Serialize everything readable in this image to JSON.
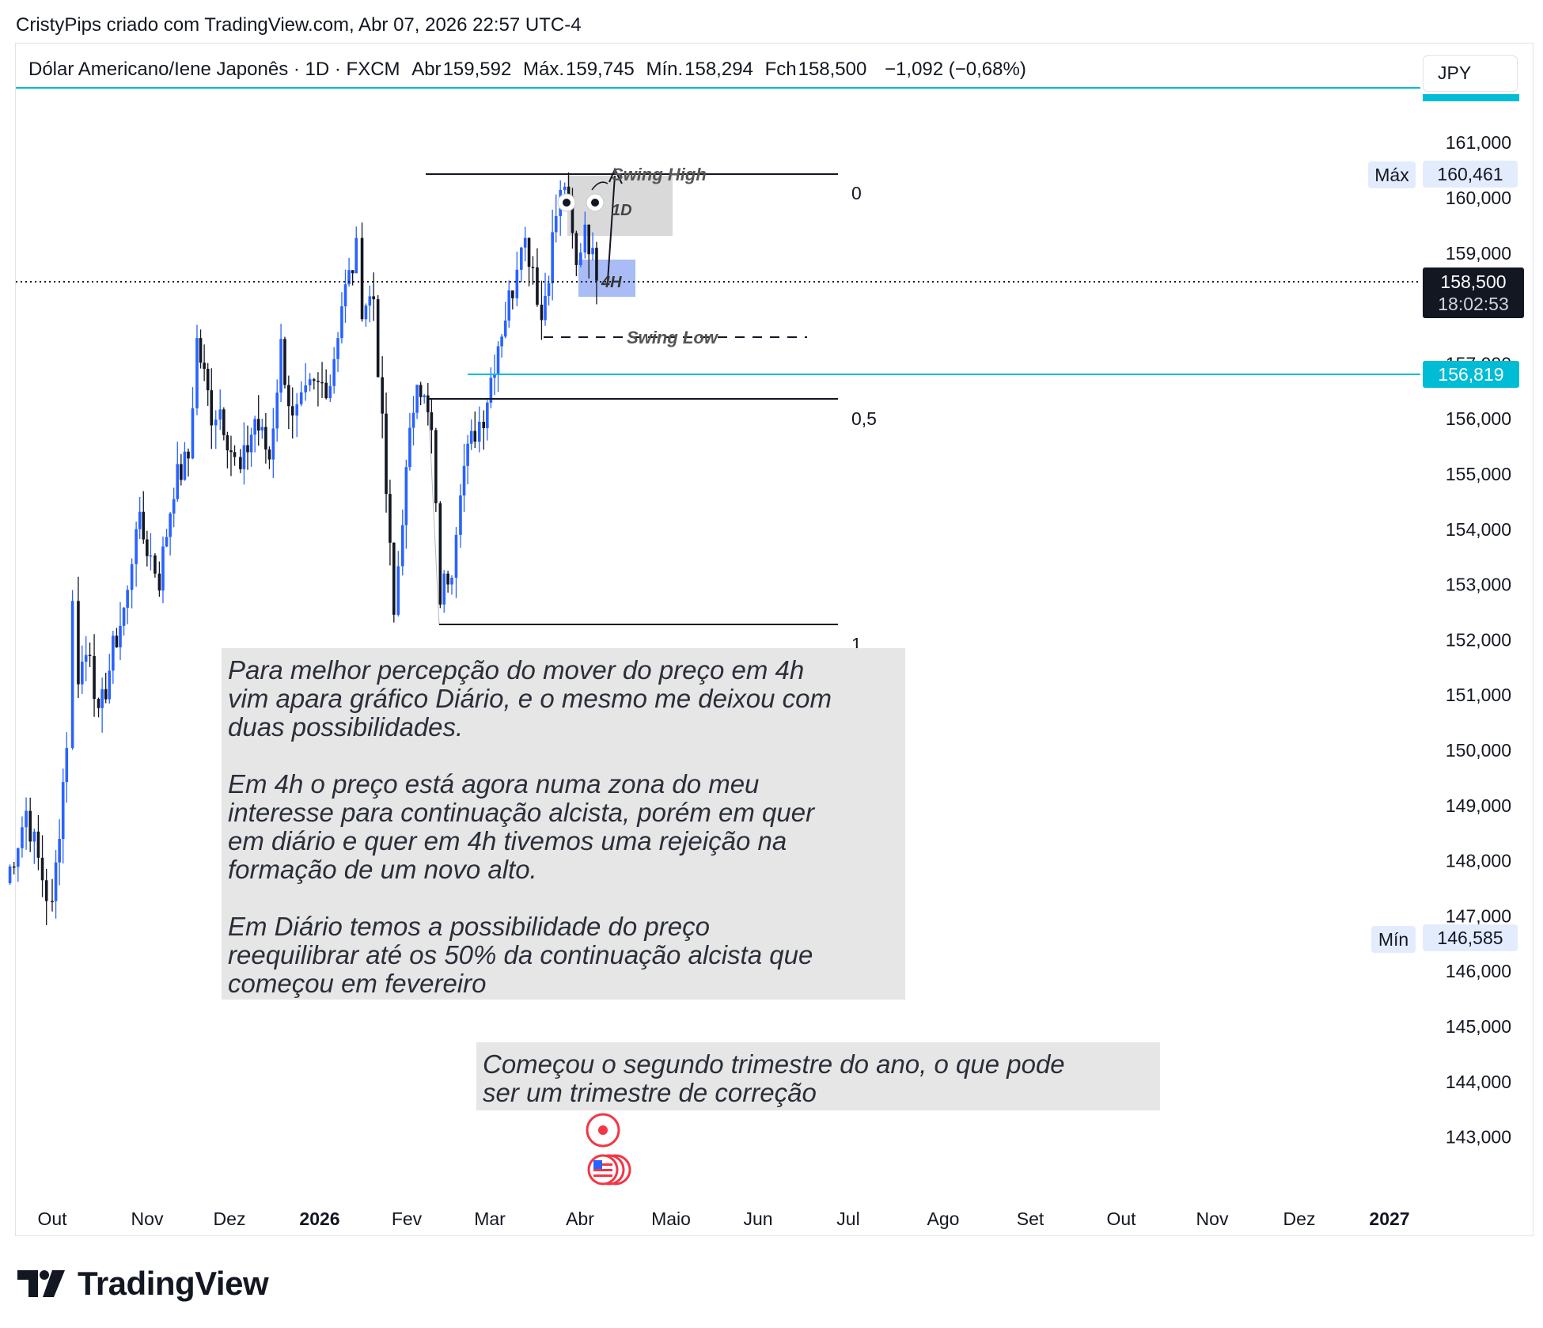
{
  "header": {
    "credit": "CristyPips criado com TradingView.com, Abr 07, 2026 22:57 UTC-4"
  },
  "legend": {
    "symbol": "Dólar Americano/Iene Japonês · 1D · FXCM",
    "open_label": "Abr",
    "open_value": "159,592",
    "high_label": "Máx.",
    "high_value": "159,745",
    "low_label": "Mín.",
    "low_value": "158,294",
    "close_label": "Fch",
    "close_value": "158,500",
    "change": "−1,092 (−0,68%)"
  },
  "currency_button": "JPY",
  "price_scale": {
    "ticks": [
      "161,000",
      "160,000",
      "159,000",
      "156,000",
      "155,000",
      "154,000",
      "153,000",
      "152,000",
      "151,000",
      "150,000",
      "149,000",
      "148,000",
      "147,000",
      "146,000",
      "145,000",
      "144,000",
      "143,000"
    ],
    "partially_hidden_tick": "157,000",
    "max_label": "Máx",
    "max_value": "160,461",
    "min_label": "Mín",
    "min_value": "146,585",
    "last_price": "158,500",
    "countdown": "18:02:53",
    "level_price": "156,819"
  },
  "time_axis": {
    "labels": [
      "Out",
      "Nov",
      "Dez",
      "2026",
      "Fev",
      "Mar",
      "Abr",
      "Maio",
      "Jun",
      "Jul",
      "Ago",
      "Set",
      "Out",
      "Nov",
      "Dez",
      "2027"
    ]
  },
  "annotations": {
    "swing_high": "Swing High",
    "swing_low": "Swing Low",
    "label_1d": "1D",
    "label_4h": "4H",
    "fib_0": "0",
    "fib_05": "0,5",
    "fib_1": "1",
    "note_main": "Para melhor percepção do mover do preço em 4h\nvim apara gráfico Diário, e o mesmo me deixou com\nduas possibilidades.\n\nEm 4h o preço está agora numa zona do meu\ninteresse para continuação alcista, porém em quer\nem diário e quer em 4h tivemos uma rejeição na\nformação de um novo alto.\n\nEm Diário temos a possibilidade do preço\nreequilibrar até os 50% da continuação alcista que\ncomeçou em fevereiro",
    "note_quarter": "Começou o segundo trimestre do ano, o que pode\nser um trimestre de correção"
  },
  "brand": {
    "name": "TradingView"
  },
  "colors": {
    "up": "#2962ff",
    "down": "#131722",
    "level_line": "#00bcd4",
    "note_bg": "#e6e6e6",
    "zone_1d": "#d9d9d9",
    "zone_4h": "#aabcf5"
  },
  "chart_data": {
    "type": "candlestick",
    "symbol": "USDJPY",
    "timeframe": "1D",
    "ylim": [
      142.0,
      162.0
    ],
    "levels": {
      "fib_0": 160.45,
      "fib_05": 156.38,
      "fib_1": 152.3,
      "horizontal": 156.819,
      "last": 158.5,
      "swing_low": 157.65
    },
    "series": [
      {
        "date": "2025-09-15",
        "value": 147.6
      },
      {
        "date": "2025-09-22",
        "value": 148.9
      },
      {
        "date": "2025-09-29",
        "value": 147.4
      },
      {
        "date": "2025-10-01",
        "value": 147.1
      },
      {
        "date": "2025-10-06",
        "value": 150.2
      },
      {
        "date": "2025-10-08",
        "value": 152.6
      },
      {
        "date": "2025-10-10",
        "value": 151.4
      },
      {
        "date": "2025-10-14",
        "value": 151.9
      },
      {
        "date": "2025-10-17",
        "value": 150.5
      },
      {
        "date": "2025-10-22",
        "value": 151.8
      },
      {
        "date": "2025-10-27",
        "value": 152.8
      },
      {
        "date": "2025-10-30",
        "value": 154.2
      },
      {
        "date": "2025-11-04",
        "value": 153.5
      },
      {
        "date": "2025-11-07",
        "value": 153.1
      },
      {
        "date": "2025-11-12",
        "value": 154.8
      },
      {
        "date": "2025-11-17",
        "value": 155.3
      },
      {
        "date": "2025-11-20",
        "value": 157.4
      },
      {
        "date": "2025-11-25",
        "value": 156.1
      },
      {
        "date": "2025-11-28",
        "value": 156.2
      },
      {
        "date": "2025-12-03",
        "value": 155.2
      },
      {
        "date": "2025-12-05",
        "value": 155.0
      },
      {
        "date": "2025-12-10",
        "value": 156.0
      },
      {
        "date": "2025-12-15",
        "value": 155.3
      },
      {
        "date": "2025-12-19",
        "value": 157.3
      },
      {
        "date": "2025-12-23",
        "value": 155.9
      },
      {
        "date": "2025-12-29",
        "value": 156.5
      },
      {
        "date": "2026-01-05",
        "value": 156.7
      },
      {
        "date": "2026-01-09",
        "value": 158.1
      },
      {
        "date": "2026-01-14",
        "value": 159.0
      },
      {
        "date": "2026-01-16",
        "value": 158.1
      },
      {
        "date": "2026-01-20",
        "value": 158.2
      },
      {
        "date": "2026-01-23",
        "value": 155.8
      },
      {
        "date": "2026-01-27",
        "value": 152.4
      },
      {
        "date": "2026-01-30",
        "value": 154.3
      },
      {
        "date": "2026-02-04",
        "value": 156.9
      },
      {
        "date": "2026-02-09",
        "value": 155.7
      },
      {
        "date": "2026-02-12",
        "value": 152.8
      },
      {
        "date": "2026-02-16",
        "value": 153.4
      },
      {
        "date": "2026-02-19",
        "value": 154.9
      },
      {
        "date": "2026-02-24",
        "value": 155.8
      },
      {
        "date": "2026-02-27",
        "value": 156.1
      },
      {
        "date": "2026-03-04",
        "value": 157.4
      },
      {
        "date": "2026-03-09",
        "value": 158.4
      },
      {
        "date": "2026-03-12",
        "value": 159.4
      },
      {
        "date": "2026-03-16",
        "value": 158.8
      },
      {
        "date": "2026-03-19",
        "value": 157.8
      },
      {
        "date": "2026-03-24",
        "value": 159.7
      },
      {
        "date": "2026-03-27",
        "value": 160.3
      },
      {
        "date": "2026-03-31",
        "value": 158.7
      },
      {
        "date": "2026-04-03",
        "value": 159.6
      },
      {
        "date": "2026-04-07",
        "value": 158.5
      }
    ]
  }
}
